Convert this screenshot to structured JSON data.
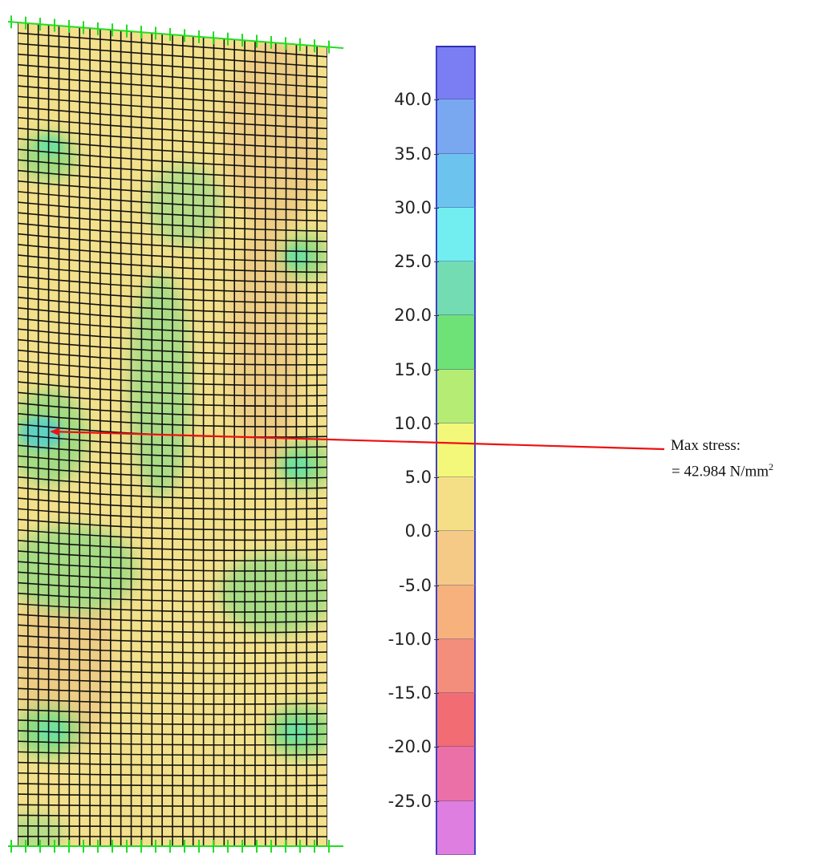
{
  "legend": {
    "ticks": [
      "40.0",
      "35.0",
      "30.0",
      "25.0",
      "20.0",
      "15.0",
      "10.0",
      "5.0",
      "0.0",
      "-5.0",
      "-10.0",
      "-15.0",
      "-20.0",
      "-25.0"
    ],
    "tick_values": [
      40,
      35,
      30,
      25,
      20,
      15,
      10,
      5,
      0,
      -5,
      -10,
      -15,
      -20,
      -25
    ],
    "bands": [
      {
        "from": 40,
        "to": 45,
        "color": "#7a7ef2"
      },
      {
        "from": 35,
        "to": 40,
        "color": "#7aa8f0"
      },
      {
        "from": 30,
        "to": 35,
        "color": "#6cc4ee"
      },
      {
        "from": 25,
        "to": 30,
        "color": "#72eef0"
      },
      {
        "from": 20,
        "to": 25,
        "color": "#74dcb2"
      },
      {
        "from": 15,
        "to": 20,
        "color": "#6ee276"
      },
      {
        "from": 10,
        "to": 15,
        "color": "#b4ec74"
      },
      {
        "from": 5,
        "to": 10,
        "color": "#f4f87a"
      },
      {
        "from": 0,
        "to": 5,
        "color": "#f5df86"
      },
      {
        "from": -5,
        "to": 0,
        "color": "#f5ca86"
      },
      {
        "from": -10,
        "to": -5,
        "color": "#f6b17c"
      },
      {
        "from": -15,
        "to": -10,
        "color": "#f48e7c"
      },
      {
        "from": -20,
        "to": -15,
        "color": "#f26c74"
      },
      {
        "from": -25,
        "to": -20,
        "color": "#ec70a8"
      },
      {
        "from": -30,
        "to": -25,
        "color": "#de7ee0"
      }
    ]
  },
  "annotation": {
    "label": "Max stress:",
    "value": "=  42.984 N/mm",
    "superscript": "2"
  },
  "colors": {
    "mesh_line": "#111111",
    "support_marker": "#22dd22",
    "arrow": "#ee1111",
    "base_fill": "#f3e08a",
    "tan_zone": "#edcc84",
    "green_zone": "#9edc80",
    "cyan_zone": "#5ed2c4"
  }
}
